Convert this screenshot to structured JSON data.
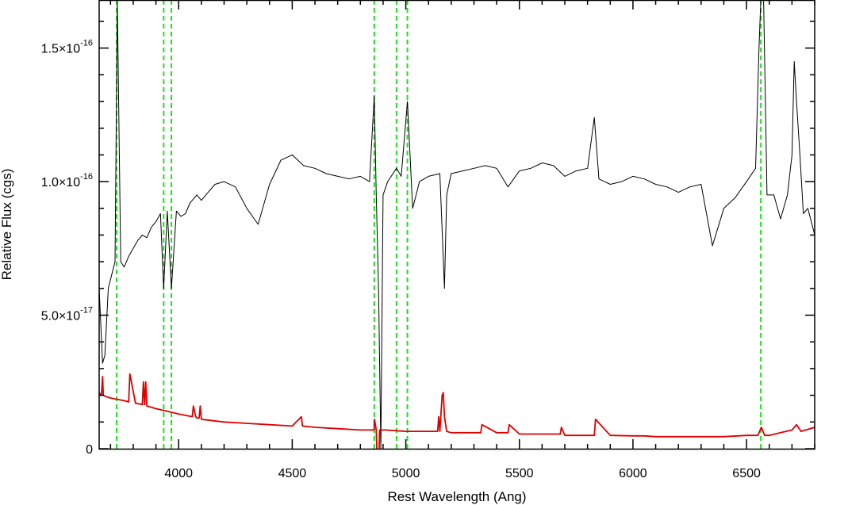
{
  "chart_data": {
    "type": "line",
    "title": "",
    "xlabel": "Rest Wavelength (Ang)",
    "ylabel": "Relative Flux (cgs)",
    "xlim": [
      3650,
      6800
    ],
    "ylim": [
      0,
      1.68e-16
    ],
    "grid": false,
    "x_ticks": [
      {
        "value": 4000,
        "label": "4000"
      },
      {
        "value": 4500,
        "label": "4500"
      },
      {
        "value": 5000,
        "label": "5000"
      },
      {
        "value": 5500,
        "label": "5500"
      },
      {
        "value": 6000,
        "label": "6000"
      },
      {
        "value": 6500,
        "label": "6500"
      }
    ],
    "y_ticks": [
      {
        "value": 0,
        "label": "0",
        "exp": ""
      },
      {
        "value": 5e-17,
        "label": "5.0×10",
        "exp": "-17"
      },
      {
        "value": 1e-16,
        "label": "1.0×10",
        "exp": "-16"
      },
      {
        "value": 1.5e-16,
        "label": "1.5×10",
        "exp": "-16"
      }
    ],
    "vlines": {
      "color": "#22dd22",
      "x": [
        3727,
        3934,
        3968,
        4861,
        4959,
        5007,
        6563
      ]
    },
    "series": [
      {
        "color": "#000000",
        "x": [
          3650,
          3665,
          3675,
          3690,
          3705,
          3720,
          3730,
          3745,
          3760,
          3780,
          3800,
          3820,
          3840,
          3860,
          3880,
          3900,
          3920,
          3934,
          3950,
          3968,
          3990,
          4010,
          4030,
          4050,
          4080,
          4100,
          4130,
          4160,
          4200,
          4250,
          4300,
          4350,
          4400,
          4450,
          4500,
          4550,
          4600,
          4650,
          4700,
          4750,
          4800,
          4840,
          4861,
          4870,
          4880,
          4890,
          4900,
          4920,
          4959,
          4980,
          5007,
          5030,
          5060,
          5100,
          5150,
          5170,
          5180,
          5200,
          5250,
          5300,
          5350,
          5400,
          5450,
          5500,
          5550,
          5600,
          5650,
          5700,
          5750,
          5800,
          5830,
          5850,
          5900,
          5950,
          6000,
          6050,
          6100,
          6150,
          6200,
          6250,
          6300,
          6350,
          6400,
          6450,
          6500,
          6540,
          6555,
          6563,
          6575,
          6590,
          6620,
          6650,
          6680,
          6700,
          6710,
          6720,
          6735,
          6750,
          6770,
          6800
        ],
        "y": [
          6e-17,
          3.2e-17,
          3.5e-17,
          6e-17,
          6.5e-17,
          7e-17,
          1.68e-16,
          7e-17,
          6.8e-17,
          7.2e-17,
          7.5e-17,
          7.8e-17,
          8e-17,
          7.9e-17,
          8.3e-17,
          8.5e-17,
          8.8e-17,
          6e-17,
          8.9e-17,
          6e-17,
          8.9e-17,
          8.7e-17,
          8.8e-17,
          9.2e-17,
          9.5e-17,
          9.3e-17,
          9.6e-17,
          9.9e-17,
          1e-16,
          9.8e-17,
          9e-17,
          8.4e-17,
          9.9e-17,
          1.08e-16,
          1.1e-16,
          1.06e-16,
          1.05e-16,
          1.03e-16,
          1.02e-16,
          1.01e-16,
          1.02e-16,
          1e-16,
          1.32e-16,
          9.5e-17,
          6e-17,
          0.0,
          9.5e-17,
          1e-16,
          1.05e-16,
          1.02e-16,
          1.3e-16,
          9e-17,
          1e-16,
          1.02e-16,
          1.03e-16,
          6e-17,
          9.5e-17,
          1.03e-16,
          1.04e-16,
          1.05e-16,
          1.06e-16,
          1.05e-16,
          9.8e-17,
          1.04e-16,
          1.05e-16,
          1.07e-16,
          1.06e-16,
          1.02e-16,
          1.04e-16,
          1.05e-16,
          1.24e-16,
          1.01e-16,
          9.9e-17,
          1e-16,
          1.02e-16,
          1.01e-16,
          9.9e-17,
          9.8e-17,
          9.6e-17,
          9.8e-17,
          9.9e-17,
          7.6e-17,
          9e-17,
          9.4e-17,
          1e-16,
          1.05e-16,
          1.5e-16,
          1.68e-16,
          1.68e-16,
          9.5e-17,
          9.5e-17,
          8.6e-17,
          9.5e-17,
          1.1e-16,
          1.45e-16,
          1.3e-16,
          1.1e-16,
          8.8e-17,
          9e-17,
          8e-17
        ]
      },
      {
        "color": "#dd0000",
        "x": [
          3650,
          3660,
          3665,
          3668,
          3680,
          3700,
          3730,
          3760,
          3780,
          3785,
          3810,
          3815,
          3840,
          3845,
          3850,
          3855,
          3860,
          3880,
          3900,
          3950,
          4000,
          4060,
          4065,
          4075,
          4080,
          4090,
          4095,
          4100,
          4200,
          4300,
          4400,
          4500,
          4540,
          4545,
          4600,
          4700,
          4800,
          4860,
          4862,
          4870,
          4875,
          4880,
          4885,
          4890,
          4900,
          4910,
          5000,
          5100,
          5140,
          5145,
          5150,
          5160,
          5165,
          5170,
          5180,
          5200,
          5300,
          5330,
          5335,
          5400,
          5450,
          5455,
          5500,
          5600,
          5680,
          5685,
          5700,
          5800,
          5830,
          5835,
          5900,
          6000,
          6050,
          6100,
          6200,
          6300,
          6400,
          6500,
          6550,
          6565,
          6580,
          6600,
          6650,
          6700,
          6720,
          6740,
          6760,
          6800
        ],
        "y": [
          2.1e-17,
          2e-17,
          2.7e-17,
          2e-17,
          1.95e-17,
          1.9e-17,
          1.85e-17,
          1.8e-17,
          1.75e-17,
          2.8e-17,
          1.7e-17,
          1.7e-17,
          1.65e-17,
          2.5e-17,
          1.65e-17,
          2.5e-17,
          1.6e-17,
          1.55e-17,
          1.5e-17,
          1.4e-17,
          1.3e-17,
          1.2e-17,
          1.6e-17,
          1.2e-17,
          1.15e-17,
          1.15e-17,
          1.6e-17,
          1.1e-17,
          1e-17,
          9.5e-18,
          9e-18,
          8.5e-18,
          1.2e-17,
          8.5e-18,
          8e-18,
          7.5e-18,
          7e-18,
          7e-18,
          1.1e-17,
          7e-18,
          -8e-18,
          -8e-18,
          7e-18,
          7e-18,
          7e-18,
          7e-18,
          6.5e-18,
          6.5e-18,
          6.5e-18,
          1.2e-17,
          6.5e-18,
          2e-17,
          2.1e-17,
          1.2e-17,
          6.5e-18,
          6e-18,
          6e-18,
          6e-18,
          9e-18,
          6e-18,
          6e-18,
          9e-18,
          5.5e-18,
          5.5e-18,
          5.5e-18,
          8e-18,
          5e-18,
          5e-18,
          5e-18,
          1.1e-17,
          5e-18,
          4.8e-18,
          4.8e-18,
          4.5e-18,
          4.5e-18,
          4.5e-18,
          4.5e-18,
          5e-18,
          5e-18,
          8e-18,
          5e-18,
          5e-18,
          6e-18,
          7e-18,
          9e-18,
          6.5e-18,
          7e-18,
          8e-18
        ]
      }
    ]
  }
}
